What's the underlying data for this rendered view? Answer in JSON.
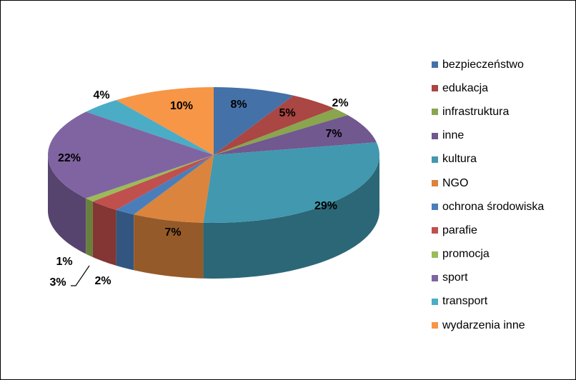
{
  "chart_data": {
    "type": "pie",
    "title": "",
    "categories": [
      "bezpieczeństwo",
      "edukacja",
      "infrastruktura",
      "inne",
      "kultura",
      "NGO",
      "ochrona środowiska",
      "parafie",
      "promocja",
      "sport",
      "transport",
      "wydarzenia inne"
    ],
    "values": [
      8,
      5,
      2,
      7,
      29,
      7,
      2,
      3,
      1,
      22,
      4,
      10
    ],
    "value_labels": [
      "8%",
      "5%",
      "2%",
      "7%",
      "29%",
      "7%",
      "2%",
      "3%",
      "1%",
      "22%",
      "4%",
      "10%"
    ],
    "colors": [
      "#4472A8",
      "#AA4643",
      "#89A54E",
      "#71588F",
      "#4198AF",
      "#DB843D",
      "#4A7EBB",
      "#C0504D",
      "#9BBB59",
      "#8064A2",
      "#4BACC6",
      "#F79646"
    ],
    "legend_position": "right",
    "style": "3d"
  }
}
